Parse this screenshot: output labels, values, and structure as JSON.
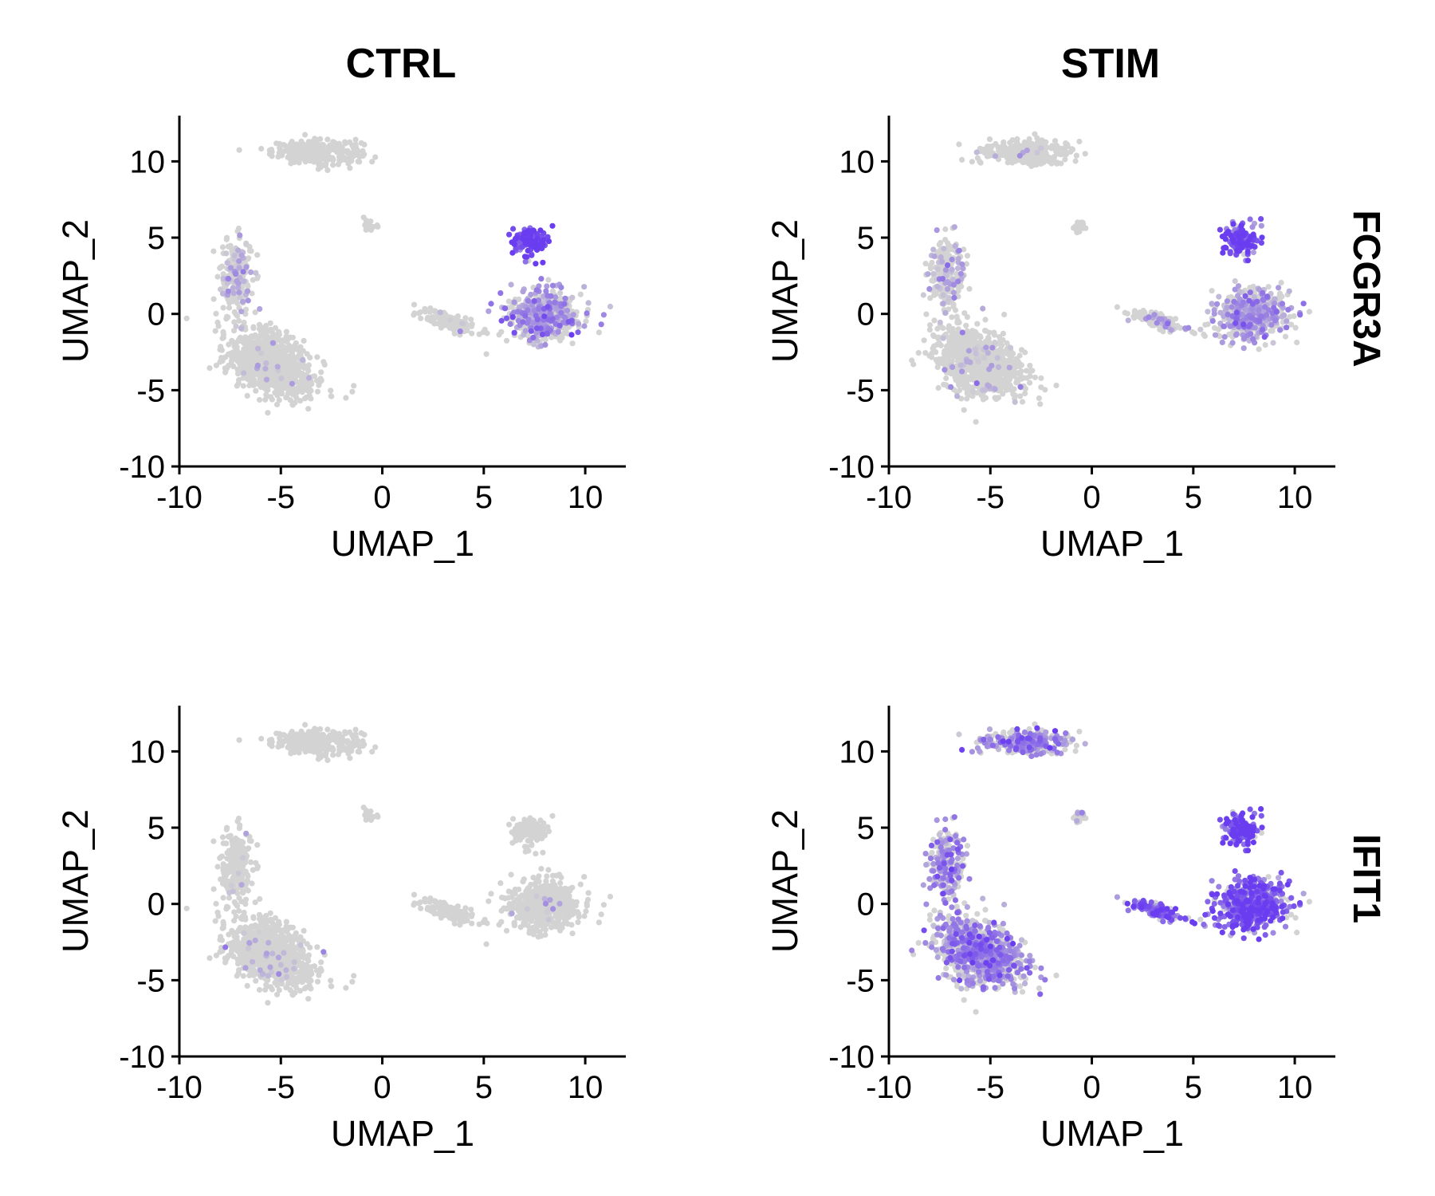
{
  "colors": {
    "low": "#d3d3d3",
    "high": "#6a3df0",
    "axis": "#000000"
  },
  "chart_data": {
    "type": "scatter",
    "plot_kind": "UMAP feature plot split by condition",
    "columns": [
      "CTRL",
      "STIM"
    ],
    "rows": [
      "FCGR3A",
      "IFIT1"
    ],
    "xlabel": "UMAP_1",
    "ylabel": "UMAP_2",
    "xlim": [
      -10,
      12
    ],
    "ylim": [
      -10,
      13
    ],
    "xticks": [
      -10,
      -5,
      0,
      5,
      10
    ],
    "xtick_labels": [
      "-10",
      "-5",
      "0",
      "5",
      "10"
    ],
    "yticks": [
      -10,
      -5,
      0,
      5,
      10
    ],
    "ytick_labels": [
      "-10",
      "-5",
      "0",
      "5",
      "10"
    ],
    "color_scale": {
      "low": "#d3d3d3",
      "high": "#6a3df0"
    },
    "legend": "none",
    "grid": false,
    "clusters": [
      {
        "name": "top island",
        "center": [
          -3.2,
          10.6
        ],
        "spread": [
          2.0,
          0.7
        ],
        "share": 0.13
      },
      {
        "name": "small isolated group",
        "center": [
          -0.6,
          5.8
        ],
        "spread": [
          0.3,
          0.35
        ],
        "share": 0.01
      },
      {
        "name": "left upper arm",
        "center": [
          -7.2,
          2.5
        ],
        "spread": [
          0.7,
          2.2
        ],
        "share": 0.1
      },
      {
        "name": "left lower mass",
        "center": [
          -5.5,
          -3.2
        ],
        "spread": [
          1.8,
          2.0
        ],
        "share": 0.4
      },
      {
        "name": "tail",
        "center": [
          3.3,
          -0.5
        ],
        "spread": [
          1.3,
          0.7
        ],
        "share": 0.06
      },
      {
        "name": "right top knob",
        "center": [
          7.3,
          4.8
        ],
        "spread": [
          0.8,
          0.9
        ],
        "share": 0.06
      },
      {
        "name": "right main body",
        "center": [
          7.9,
          -0.1
        ],
        "spread": [
          1.6,
          1.5
        ],
        "share": 0.24
      }
    ],
    "panels": [
      {
        "column": "CTRL",
        "row": "FCGR3A",
        "cluster_expression": [
          0.0,
          0.0,
          0.15,
          0.02,
          0.05,
          0.92,
          0.35
        ]
      },
      {
        "column": "STIM",
        "row": "FCGR3A",
        "cluster_expression": [
          0.02,
          0.0,
          0.15,
          0.05,
          0.08,
          0.85,
          0.3
        ]
      },
      {
        "column": "CTRL",
        "row": "IFIT1",
        "cluster_expression": [
          0.0,
          0.0,
          0.03,
          0.03,
          0.0,
          0.0,
          0.02
        ]
      },
      {
        "column": "STIM",
        "row": "IFIT1",
        "cluster_expression": [
          0.45,
          0.1,
          0.45,
          0.45,
          0.65,
          0.85,
          0.75
        ]
      }
    ]
  }
}
